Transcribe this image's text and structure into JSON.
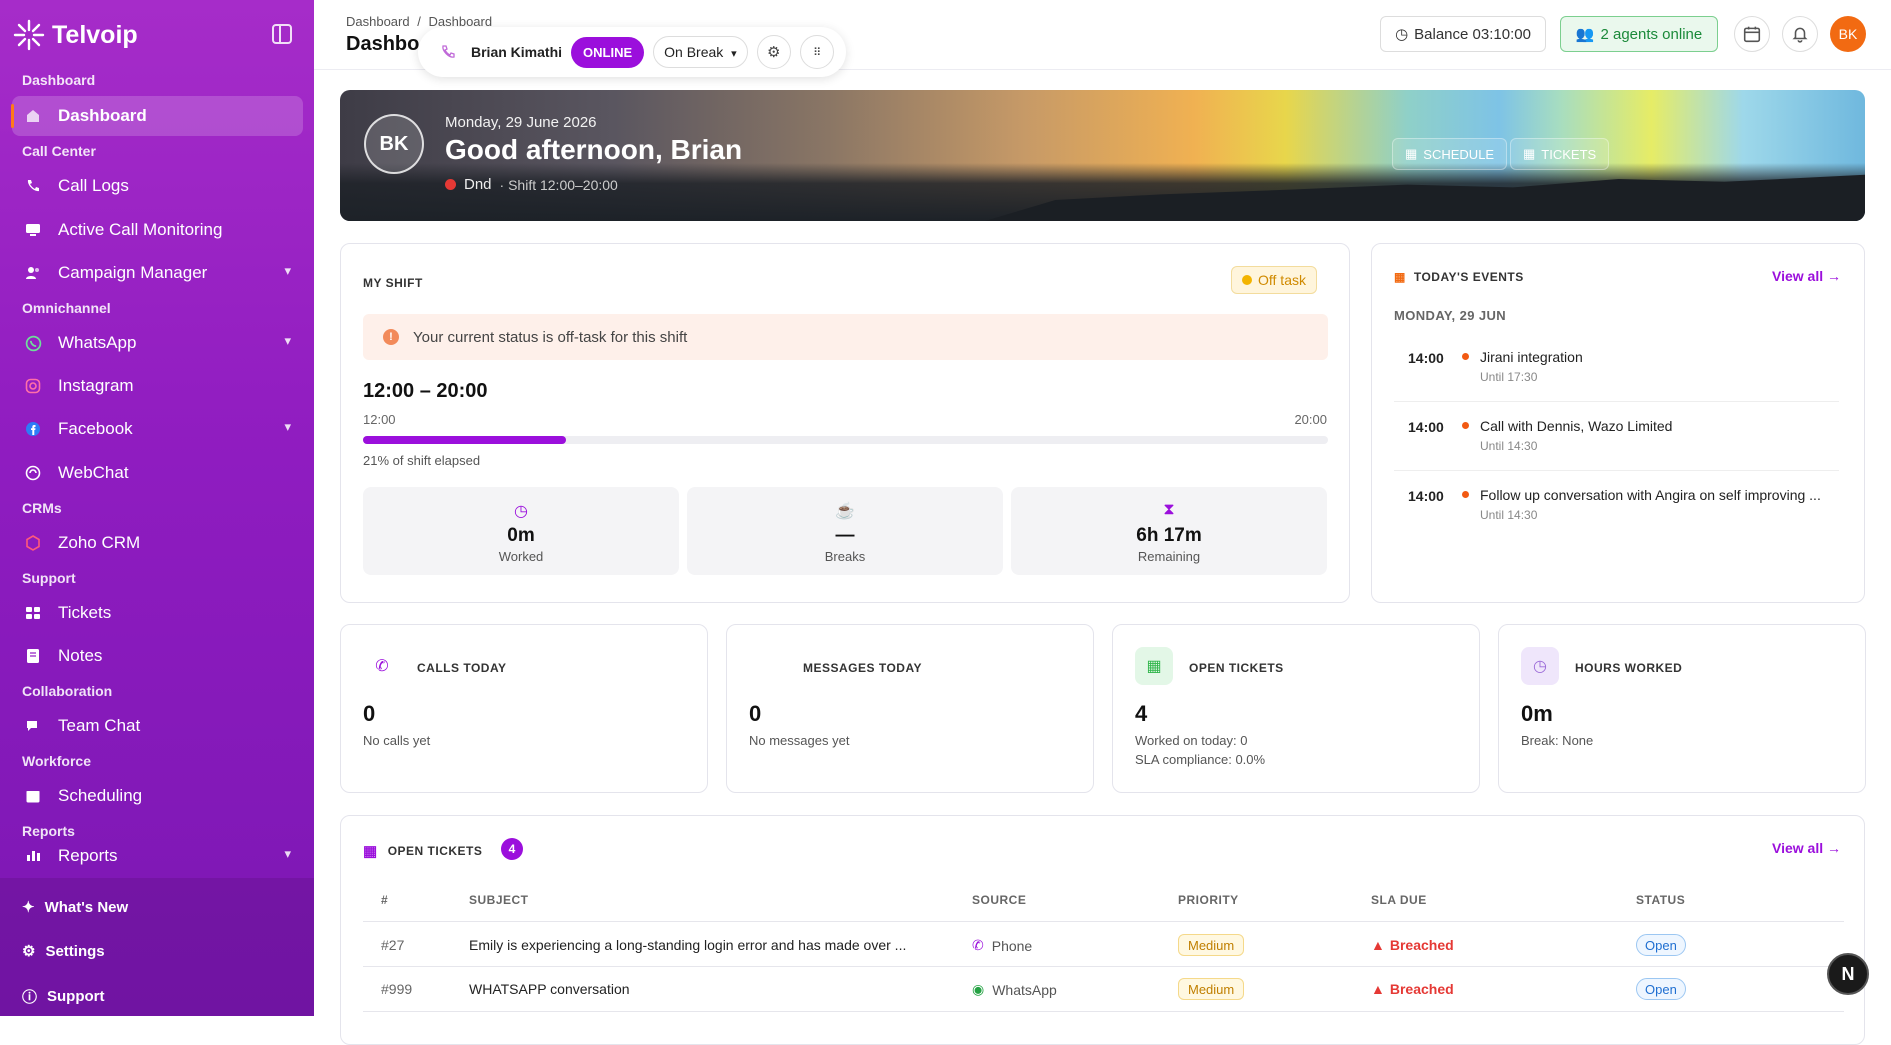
{
  "app": {
    "name": "Telvoip"
  },
  "sidebar": {
    "sections": [
      {
        "label": "Dashboard"
      },
      {
        "label": "Call Center"
      },
      {
        "label": "Omnichannel"
      },
      {
        "label": "CRMs"
      },
      {
        "label": "Support"
      },
      {
        "label": "Collaboration"
      },
      {
        "label": "Workforce"
      },
      {
        "label": "Reports"
      }
    ],
    "items": [
      {
        "label": "Dashboard",
        "icon": "home-icon"
      },
      {
        "label": "Call Logs",
        "icon": "phone-icon"
      },
      {
        "label": "Active Call Monitoring",
        "icon": "monitor-icon"
      },
      {
        "label": "Campaign Manager",
        "icon": "users-icon"
      },
      {
        "label": "WhatsApp",
        "icon": "whatsapp-icon"
      },
      {
        "label": "Instagram",
        "icon": "instagram-icon"
      },
      {
        "label": "Facebook",
        "icon": "facebook-icon"
      },
      {
        "label": "WebChat",
        "icon": "webchat-icon"
      },
      {
        "label": "Zoho CRM",
        "icon": "zoho-icon"
      },
      {
        "label": "Tickets",
        "icon": "ticket-icon"
      },
      {
        "label": "Notes",
        "icon": "notes-icon"
      },
      {
        "label": "Team Chat",
        "icon": "chat-icon"
      },
      {
        "label": "Scheduling",
        "icon": "calendar-icon"
      },
      {
        "label": "Reports",
        "icon": "bar-chart-icon"
      }
    ],
    "bottom": [
      {
        "label": "What's New"
      },
      {
        "label": "Settings"
      },
      {
        "label": "Support"
      }
    ]
  },
  "header": {
    "breadcrumb": [
      "Dashboard",
      "Dashboard"
    ],
    "breadcrumb_sep": "/",
    "title": "Dashboard",
    "agent_name": "Brian Kimathi",
    "online_label": "ONLINE",
    "status_select": "On Break",
    "balance": "Balance 03:10:00",
    "agents_online": "2 agents online",
    "user_initials": "BK"
  },
  "hero": {
    "initials": "BK",
    "date": "Monday, 29 June 2026",
    "greeting": "Good afternoon, Brian",
    "status": "Dnd",
    "shift": "· Shift 12:00–20:00",
    "schedule_btn": "SCHEDULE",
    "tickets_btn": "TICKETS"
  },
  "my_shift": {
    "heading": "MY SHIFT",
    "badge": "Off task",
    "alert": "Your current status is off-task for this shift",
    "range": "12:00 – 20:00",
    "start": "12:00",
    "end": "20:00",
    "elapsed_fraction": 0.21,
    "elapsed_text": "21% of shift elapsed",
    "metrics": [
      {
        "value": "0m",
        "label": "Worked",
        "icon": "clock-icon"
      },
      {
        "value": "—",
        "label": "Breaks",
        "icon": "coffee-icon"
      },
      {
        "value": "6h 17m",
        "label": "Remaining",
        "icon": "hourglass-icon"
      }
    ]
  },
  "events": {
    "heading": "TODAY'S EVENTS",
    "view_all": "View all →",
    "day": "MONDAY, 29 JUN",
    "items": [
      {
        "time": "14:00",
        "name": "Jirani integration",
        "until": "Until 17:30"
      },
      {
        "time": "14:00",
        "name": "Call with Dennis, Wazo Limited",
        "until": "Until 14:30"
      },
      {
        "time": "14:00",
        "name": "Follow up conversation with Angira on self improving ...",
        "until": "Until 14:30"
      }
    ]
  },
  "stats": [
    {
      "heading": "CALLS TODAY",
      "value": "0",
      "sub1": "No calls yet",
      "sub2": ""
    },
    {
      "heading": "MESSAGES TODAY",
      "value": "0",
      "sub1": "No messages yet",
      "sub2": ""
    },
    {
      "heading": "OPEN TICKETS",
      "value": "4",
      "sub1": "Worked on today: 0",
      "sub2": "SLA compliance: 0.0%"
    },
    {
      "heading": "HOURS WORKED",
      "value": "0m",
      "sub1": "Break: None",
      "sub2": ""
    }
  ],
  "open_tickets": {
    "heading": "OPEN TICKETS",
    "count": "4",
    "view_all": "View all →",
    "columns": [
      "#",
      "SUBJECT",
      "SOURCE",
      "PRIORITY",
      "SLA DUE",
      "STATUS"
    ],
    "rows": [
      {
        "id": "#27",
        "subject": "Emily is experiencing a long-standing login error and has made over ...",
        "source": "Phone",
        "priority": "Medium",
        "sla": "Breached",
        "status": "Open"
      },
      {
        "id": "#999",
        "subject": "WHATSAPP conversation",
        "source": "WhatsApp",
        "priority": "Medium",
        "sla": "Breached",
        "status": "Open"
      }
    ]
  },
  "fab": {
    "label": "N"
  },
  "colors": {
    "accent": "#9b0fdc",
    "sidebar": "#8f1cc0",
    "danger": "#e53935",
    "warning": "#d08a00",
    "success": "#1b8a3a"
  }
}
